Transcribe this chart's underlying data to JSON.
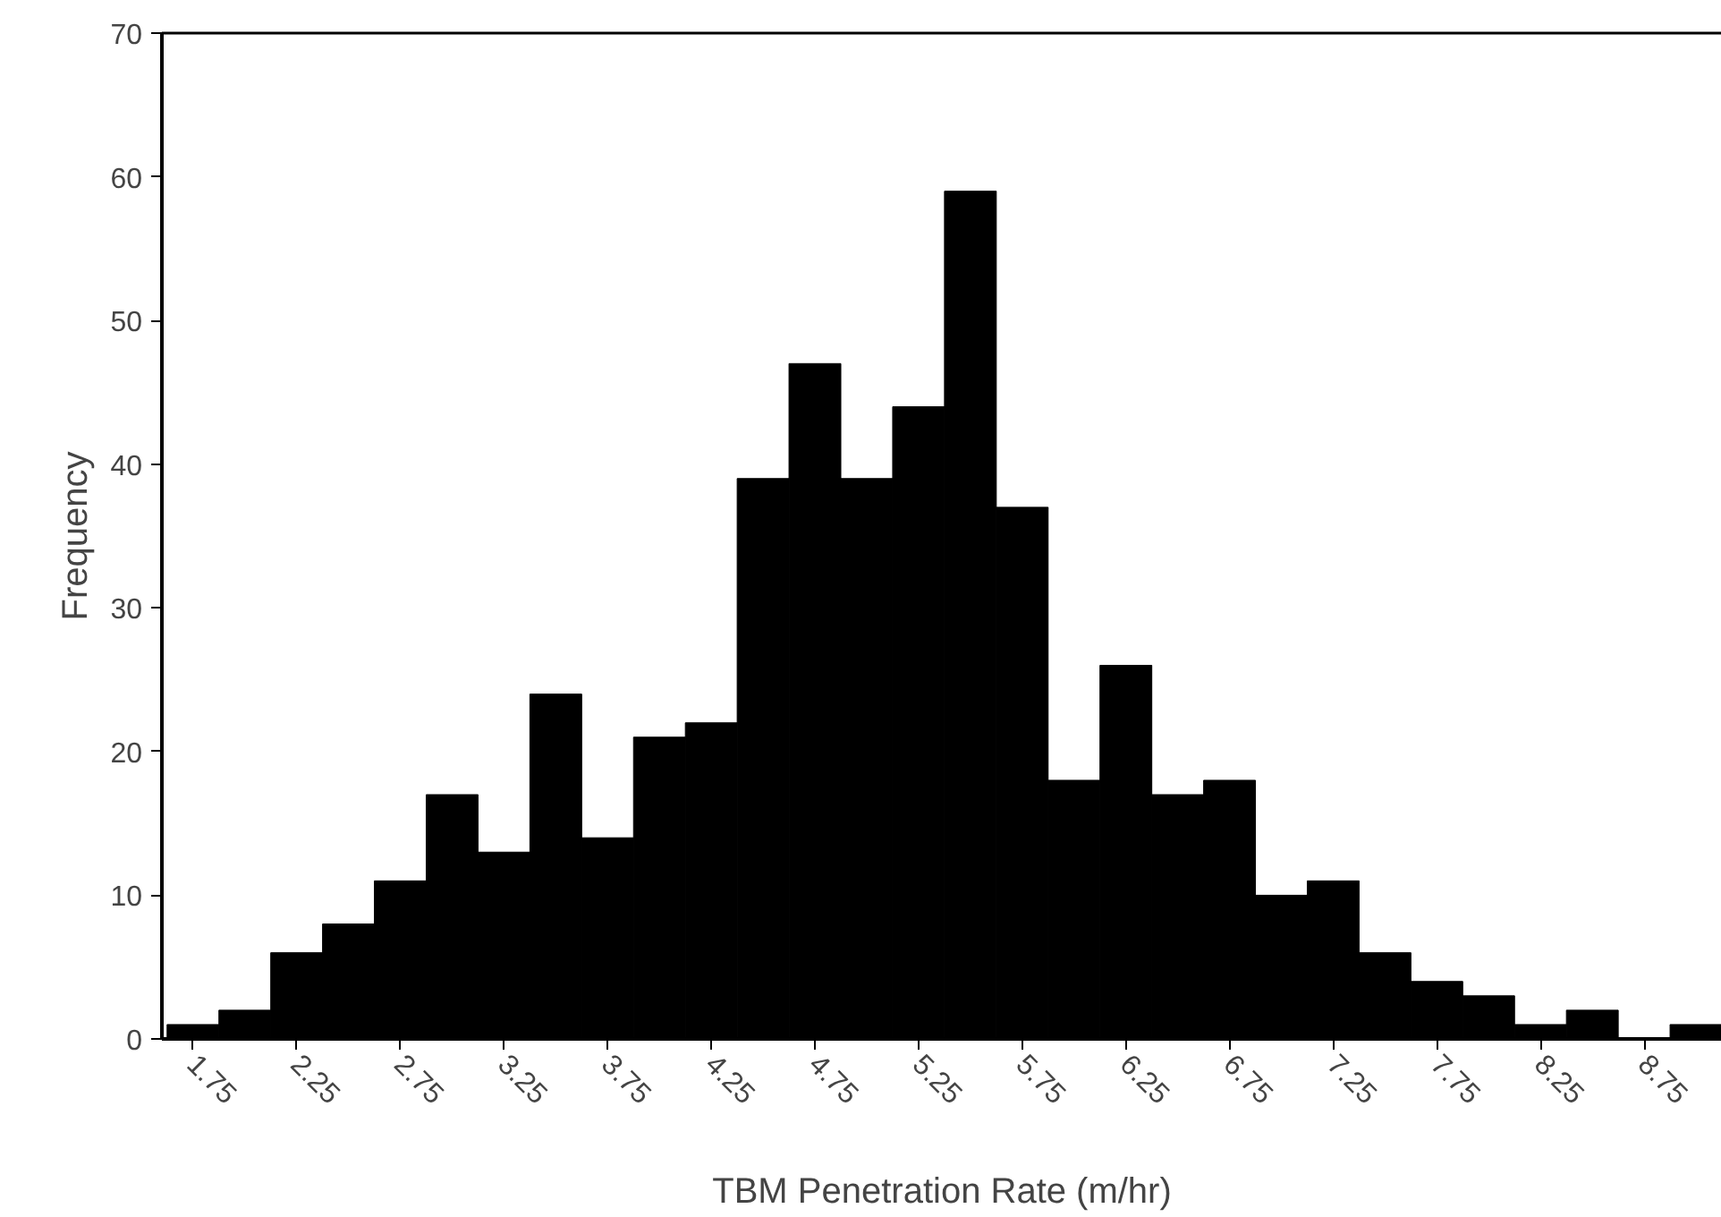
{
  "chart_data": {
    "type": "histogram",
    "xlabel": "TBM Penetration Rate (m/hr)",
    "ylabel": "Frequency",
    "bins": [
      1.625,
      1.875,
      2.125,
      2.375,
      2.625,
      2.875,
      3.125,
      3.375,
      3.625,
      3.875,
      4.125,
      4.375,
      4.625,
      4.875,
      5.125,
      5.375,
      5.625,
      5.875,
      6.125,
      6.375,
      6.625,
      6.875,
      7.125,
      7.375,
      7.625,
      7.875,
      8.125,
      8.375,
      8.625,
      8.875,
      9.125
    ],
    "values": [
      1,
      2,
      6,
      8,
      11,
      17,
      13,
      24,
      14,
      21,
      22,
      39,
      47,
      39,
      44,
      59,
      37,
      18,
      26,
      17,
      18,
      10,
      11,
      6,
      4,
      3,
      1,
      2,
      0,
      1
    ],
    "color": "#000000",
    "xlim": [
      1.6,
      9.125
    ],
    "ylim": [
      0,
      70
    ],
    "xticks": [
      1.75,
      2.25,
      2.75,
      3.25,
      3.75,
      4.25,
      4.75,
      5.25,
      5.75,
      6.25,
      6.75,
      7.25,
      7.75,
      8.25,
      8.75
    ],
    "yticks": [
      0,
      10,
      20,
      30,
      40,
      50,
      60,
      70
    ],
    "grid": false
  }
}
